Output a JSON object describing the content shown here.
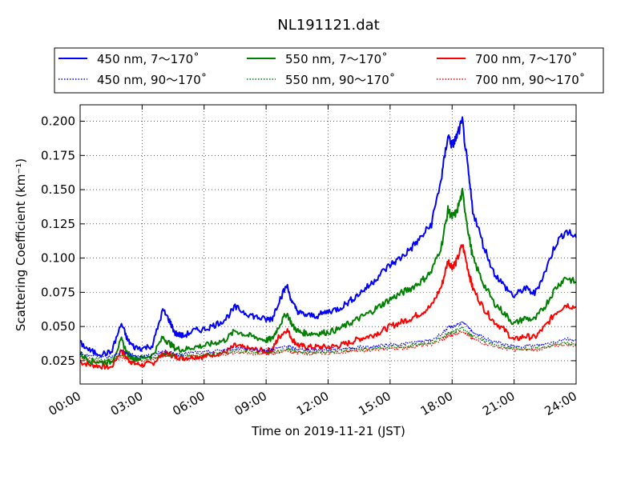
{
  "chart_data": {
    "type": "line",
    "title": "NL191121.dat",
    "xlabel": "Time on 2019-11-21 (JST)",
    "ylabel": "Scattering Coefficient (km⁻¹)",
    "x_ticks": [
      "00:00",
      "03:00",
      "06:00",
      "09:00",
      "12:00",
      "15:00",
      "18:00",
      "21:00",
      "24:00"
    ],
    "xlim": [
      "00:00",
      "24:00"
    ],
    "ylim": [
      0.008,
      0.212
    ],
    "y_ticks": [
      "0.025",
      "0.050",
      "0.075",
      "0.100",
      "0.125",
      "0.150",
      "0.175",
      "0.200"
    ],
    "grid": true,
    "legend_position": "top-center",
    "x_hours": [
      0.0,
      0.5,
      1.0,
      1.5,
      2.0,
      2.3,
      2.6,
      3.0,
      3.5,
      4.0,
      4.3,
      4.6,
      5.0,
      5.5,
      6.0,
      6.5,
      7.0,
      7.5,
      8.0,
      8.5,
      9.0,
      9.3,
      9.6,
      10.0,
      10.3,
      10.6,
      11.0,
      11.5,
      12.0,
      12.5,
      13.0,
      13.5,
      14.0,
      14.5,
      15.0,
      15.5,
      16.0,
      16.5,
      17.0,
      17.5,
      17.8,
      18.0,
      18.2,
      18.5,
      18.8,
      19.0,
      19.5,
      20.0,
      20.5,
      21.0,
      21.5,
      22.0,
      22.5,
      23.0,
      23.5,
      24.0
    ],
    "series": [
      {
        "name": "450 nm, 7～170˚",
        "color": "#0000ff",
        "style": "solid",
        "values": [
          0.038,
          0.032,
          0.03,
          0.031,
          0.052,
          0.04,
          0.035,
          0.034,
          0.036,
          0.062,
          0.055,
          0.045,
          0.043,
          0.047,
          0.048,
          0.051,
          0.055,
          0.064,
          0.06,
          0.057,
          0.055,
          0.056,
          0.068,
          0.08,
          0.066,
          0.06,
          0.058,
          0.058,
          0.061,
          0.063,
          0.068,
          0.074,
          0.08,
          0.088,
          0.095,
          0.1,
          0.107,
          0.115,
          0.125,
          0.16,
          0.19,
          0.182,
          0.188,
          0.2,
          0.16,
          0.135,
          0.11,
          0.09,
          0.08,
          0.072,
          0.078,
          0.074,
          0.09,
          0.11,
          0.12,
          0.115
        ]
      },
      {
        "name": "450 nm, 90～170˚",
        "color": "#0000ff",
        "style": "dotted",
        "values": [
          0.03,
          0.029,
          0.028,
          0.028,
          0.032,
          0.03,
          0.029,
          0.028,
          0.029,
          0.032,
          0.031,
          0.03,
          0.03,
          0.031,
          0.031,
          0.032,
          0.033,
          0.034,
          0.034,
          0.033,
          0.033,
          0.033,
          0.034,
          0.036,
          0.034,
          0.033,
          0.033,
          0.033,
          0.033,
          0.034,
          0.034,
          0.035,
          0.035,
          0.036,
          0.037,
          0.037,
          0.038,
          0.039,
          0.04,
          0.045,
          0.049,
          0.05,
          0.051,
          0.053,
          0.049,
          0.046,
          0.042,
          0.039,
          0.037,
          0.035,
          0.036,
          0.036,
          0.037,
          0.039,
          0.041,
          0.04
        ]
      },
      {
        "name": "550 nm, 7～170˚",
        "color": "#008000",
        "style": "solid",
        "values": [
          0.03,
          0.025,
          0.024,
          0.024,
          0.04,
          0.03,
          0.027,
          0.027,
          0.029,
          0.042,
          0.038,
          0.034,
          0.033,
          0.035,
          0.036,
          0.038,
          0.04,
          0.047,
          0.044,
          0.042,
          0.04,
          0.041,
          0.05,
          0.06,
          0.05,
          0.046,
          0.045,
          0.045,
          0.046,
          0.048,
          0.052,
          0.056,
          0.06,
          0.065,
          0.07,
          0.074,
          0.078,
          0.083,
          0.09,
          0.11,
          0.135,
          0.13,
          0.133,
          0.148,
          0.118,
          0.1,
          0.082,
          0.068,
          0.06,
          0.052,
          0.056,
          0.055,
          0.065,
          0.078,
          0.086,
          0.082
        ]
      },
      {
        "name": "550 nm, 90～170˚",
        "color": "#008000",
        "style": "dotted",
        "values": [
          0.028,
          0.027,
          0.026,
          0.026,
          0.029,
          0.028,
          0.027,
          0.026,
          0.027,
          0.03,
          0.029,
          0.029,
          0.029,
          0.029,
          0.03,
          0.03,
          0.031,
          0.032,
          0.032,
          0.031,
          0.031,
          0.031,
          0.032,
          0.034,
          0.032,
          0.032,
          0.031,
          0.031,
          0.032,
          0.032,
          0.033,
          0.033,
          0.034,
          0.034,
          0.035,
          0.035,
          0.036,
          0.037,
          0.038,
          0.042,
          0.045,
          0.046,
          0.047,
          0.049,
          0.045,
          0.043,
          0.04,
          0.037,
          0.035,
          0.034,
          0.034,
          0.034,
          0.035,
          0.037,
          0.038,
          0.037
        ]
      },
      {
        "name": "700 nm, 7～170˚",
        "color": "#ff0000",
        "style": "solid",
        "values": [
          0.024,
          0.022,
          0.021,
          0.02,
          0.033,
          0.026,
          0.023,
          0.022,
          0.023,
          0.03,
          0.03,
          0.028,
          0.027,
          0.028,
          0.028,
          0.03,
          0.031,
          0.036,
          0.034,
          0.033,
          0.032,
          0.033,
          0.042,
          0.048,
          0.04,
          0.036,
          0.035,
          0.035,
          0.035,
          0.036,
          0.038,
          0.041,
          0.043,
          0.046,
          0.05,
          0.053,
          0.056,
          0.06,
          0.065,
          0.08,
          0.098,
          0.094,
          0.097,
          0.11,
          0.09,
          0.078,
          0.064,
          0.054,
          0.048,
          0.04,
          0.043,
          0.042,
          0.05,
          0.06,
          0.066,
          0.064
        ]
      },
      {
        "name": "700 nm, 90～170˚",
        "color": "#ff0000",
        "style": "dotted",
        "values": [
          0.026,
          0.025,
          0.024,
          0.024,
          0.028,
          0.026,
          0.025,
          0.025,
          0.026,
          0.029,
          0.029,
          0.028,
          0.028,
          0.028,
          0.029,
          0.029,
          0.03,
          0.031,
          0.031,
          0.03,
          0.03,
          0.03,
          0.031,
          0.033,
          0.031,
          0.031,
          0.03,
          0.03,
          0.031,
          0.031,
          0.032,
          0.032,
          0.033,
          0.033,
          0.034,
          0.034,
          0.035,
          0.036,
          0.037,
          0.04,
          0.043,
          0.044,
          0.045,
          0.047,
          0.043,
          0.041,
          0.038,
          0.036,
          0.034,
          0.033,
          0.033,
          0.033,
          0.034,
          0.036,
          0.037,
          0.036
        ]
      }
    ]
  }
}
